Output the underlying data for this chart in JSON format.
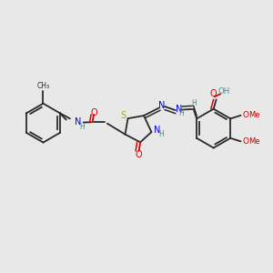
{
  "bg_color": "#e8e8e8",
  "bond_color": "#2a2a2a",
  "N_color": "#0000ee",
  "O_color": "#dd0000",
  "S_color": "#aaaa00",
  "H_color": "#4a8a8a",
  "OMe_color": "#cc0000",
  "figsize": [
    3.0,
    3.0
  ],
  "dpi": 100,
  "xlim": [
    0,
    10
  ],
  "ylim": [
    0,
    10
  ]
}
